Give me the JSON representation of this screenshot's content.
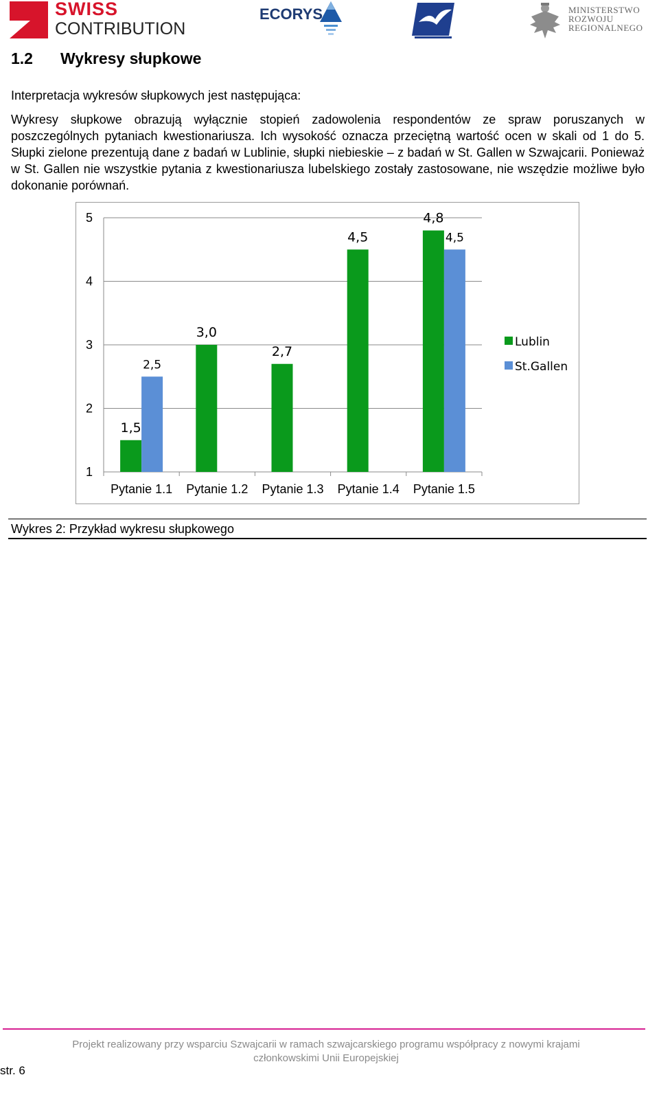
{
  "header": {
    "swiss_word": "SWISS",
    "contribution_word": "CONTRIBUTION",
    "ecorys_word": "ECORYS",
    "ministry_lines": [
      "MINISTERSTWO",
      "ROZWOJU",
      "REGIONALNEGO"
    ],
    "colors": {
      "swiss_red": "#d7142b",
      "ecorys_blue": "#1e3b73"
    }
  },
  "section": {
    "number": "1.2",
    "title": "Wykresy słupkowe"
  },
  "intro": "Interpretacja wykresów słupkowych jest następująca:",
  "body": "Wykresy słupkowe obrazują wyłącznie stopień zadowolenia respondentów ze spraw poruszanych w poszczególnych pytaniach kwestionariusza. Ich wysokość oznacza przeciętną wartość ocen w skali od 1 do 5. Słupki zielone prezentują dane z badań w Lublinie, słupki niebieskie – z badań w St. Gallen w Szwajcarii. Ponieważ w St. Gallen nie wszystkie pytania z kwestionariusza lubelskiego zostały zastosowane, nie wszędzie możliwe było dokonanie porównań.",
  "chart_data": {
    "type": "bar",
    "title": "",
    "xlabel": "",
    "ylabel": "",
    "categories": [
      "Pytanie 1.1",
      "Pytanie 1.2",
      "Pytanie 1.3",
      "Pytanie 1.4",
      "Pytanie 1.5"
    ],
    "series": [
      {
        "name": "Lublin",
        "color": "#0a9a1c",
        "values": [
          1.5,
          3.0,
          2.7,
          4.5,
          4.8
        ],
        "labels": [
          "1,5",
          "3,0",
          "2,7",
          "4,5",
          "4,8"
        ]
      },
      {
        "name": "St.Gallen",
        "color": "#5b8fd6",
        "values": [
          2.5,
          null,
          null,
          null,
          4.5
        ],
        "labels": [
          "2,5",
          "",
          "",
          "",
          "4,5"
        ]
      }
    ],
    "ylim": [
      1,
      5
    ],
    "yticks": [
      "1",
      "2",
      "3",
      "4",
      "5"
    ],
    "grid": true,
    "legend": "right"
  },
  "caption": "Wykres 2: Przykład wykresu słupkowego",
  "footer": {
    "line1": "Projekt realizowany przy wsparciu Szwajcarii w ramach szwajcarskiego programu współpracy z nowymi krajami",
    "line2": "członkowskimi Unii Europejskiej",
    "page": "str. 6",
    "accent": "#d61f91"
  }
}
